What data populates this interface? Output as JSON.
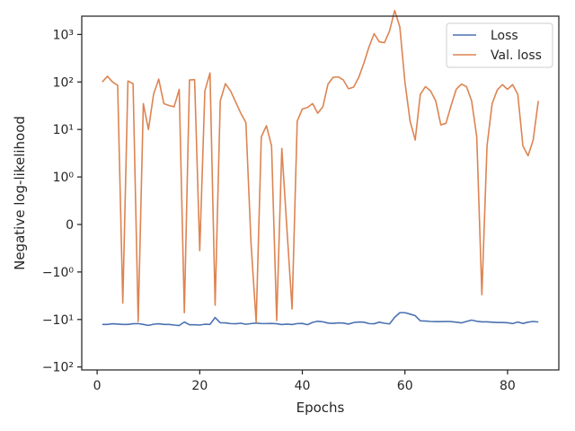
{
  "chart_data": {
    "type": "line",
    "title": "",
    "xlabel": "Epochs",
    "ylabel": "Negative log-likelihood",
    "xlim": [
      -3,
      90
    ],
    "yscale": "symlog",
    "grid": false,
    "legend_position": "top-right",
    "x_ticks": [
      0,
      20,
      40,
      60,
      80
    ],
    "y_ticks": [
      {
        "value": -100,
        "label": "−10²"
      },
      {
        "value": -10,
        "label": "−10¹"
      },
      {
        "value": -1,
        "label": "−10⁰"
      },
      {
        "value": 0,
        "label": "0"
      },
      {
        "value": 1,
        "label": "10⁰"
      },
      {
        "value": 10,
        "label": "10¹"
      },
      {
        "value": 100,
        "label": "10²"
      },
      {
        "value": 1000,
        "label": "10³"
      }
    ],
    "series": [
      {
        "name": "Loss",
        "color": "#4c72b0",
        "x": [
          1,
          2,
          3,
          4,
          5,
          6,
          7,
          8,
          9,
          10,
          11,
          12,
          13,
          14,
          15,
          16,
          17,
          18,
          19,
          20,
          21,
          22,
          23,
          24,
          25,
          26,
          27,
          28,
          29,
          30,
          31,
          32,
          33,
          34,
          35,
          36,
          37,
          38,
          39,
          40,
          41,
          42,
          43,
          44,
          45,
          46,
          47,
          48,
          49,
          50,
          51,
          52,
          53,
          54,
          55,
          56,
          57,
          58,
          59,
          60,
          61,
          62,
          63,
          64,
          65,
          66,
          67,
          68,
          69,
          70,
          71,
          72,
          73,
          74,
          75,
          76,
          77,
          78,
          79,
          80,
          81,
          82,
          83,
          84,
          85,
          86
        ],
        "y": [
          -12.7,
          -12.7,
          -12.3,
          -12.5,
          -12.7,
          -12.7,
          -12.3,
          -12.2,
          -12.7,
          -13.3,
          -12.6,
          -12.3,
          -12.7,
          -12.7,
          -13.1,
          -13.4,
          -11.3,
          -12.9,
          -12.9,
          -13.1,
          -12.6,
          -12.7,
          -9.1,
          -11.7,
          -11.8,
          -12.2,
          -12.3,
          -12.0,
          -12.6,
          -12.2,
          -11.9,
          -12.2,
          -12.2,
          -12.1,
          -12.3,
          -12.8,
          -12.5,
          -12.8,
          -12.2,
          -12.1,
          -12.9,
          -11.5,
          -10.9,
          -11.2,
          -11.9,
          -12.1,
          -11.8,
          -11.9,
          -12.5,
          -11.6,
          -11.3,
          -11.4,
          -12.2,
          -12.3,
          -11.4,
          -12.0,
          -12.4,
          -9.0,
          -7.2,
          -7.2,
          -7.7,
          -8.3,
          -10.7,
          -10.8,
          -11.0,
          -11.1,
          -11.1,
          -11.0,
          -11.1,
          -11.4,
          -11.8,
          -11.0,
          -10.3,
          -10.9,
          -11.2,
          -11.2,
          -11.4,
          -11.6,
          -11.6,
          -11.7,
          -12.2,
          -11.3,
          -12.1,
          -11.4,
          -11.0,
          -11.3
        ]
      },
      {
        "name": "Val. loss",
        "color": "#dd8452",
        "x": [
          1,
          2,
          3,
          4,
          5,
          6,
          7,
          8,
          9,
          10,
          11,
          12,
          13,
          14,
          15,
          16,
          17,
          18,
          19,
          20,
          21,
          22,
          23,
          24,
          25,
          26,
          27,
          28,
          29,
          30,
          31,
          32,
          33,
          34,
          35,
          36,
          37,
          38,
          39,
          40,
          41,
          42,
          43,
          44,
          45,
          46,
          47,
          48,
          49,
          50,
          51,
          52,
          53,
          54,
          55,
          56,
          57,
          58,
          59,
          60,
          61,
          62,
          63,
          64,
          65,
          66,
          67,
          68,
          69,
          70,
          71,
          72,
          73,
          74,
          75,
          76,
          77,
          78,
          79,
          80,
          81,
          82,
          83,
          84,
          85,
          86
        ],
        "y": [
          100,
          132,
          100,
          85,
          -4.5,
          105,
          92,
          -11,
          35,
          10,
          55,
          115,
          35,
          32,
          30,
          70,
          -7.2,
          110,
          112,
          -0.55,
          65,
          155,
          -5,
          40,
          92,
          65,
          38,
          22,
          14,
          -0.4,
          -11.5,
          7,
          12,
          4.5,
          -10.5,
          4,
          -0.1,
          -6,
          15,
          27,
          29,
          35,
          22,
          30,
          90,
          125,
          128,
          110,
          72,
          78,
          125,
          250,
          550,
          1040,
          700,
          670,
          1180,
          3200,
          1450,
          100,
          15,
          6,
          55,
          80,
          65,
          40,
          12.5,
          13.5,
          32,
          70,
          90,
          80,
          40,
          7,
          -3,
          4.5,
          35,
          68,
          88,
          70,
          88,
          55,
          4.5,
          2.8,
          6,
          40
        ]
      }
    ]
  }
}
